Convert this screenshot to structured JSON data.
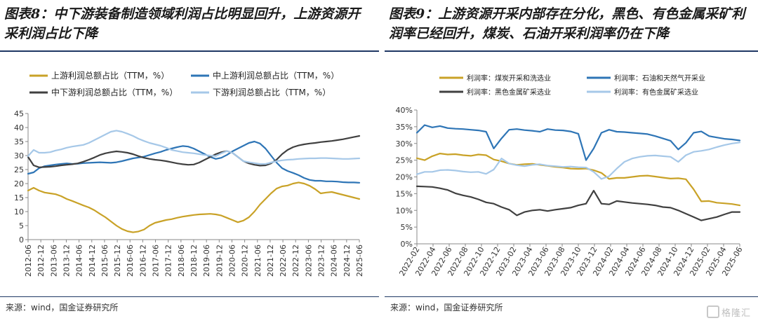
{
  "left": {
    "title": "图表8：中下游装备制造领域利润占比明显回升，上游资源开采利润占比下降",
    "source": "来源：wind，国金证券研究所"
  },
  "right": {
    "title": "图表9：上游资源开采内部存在分化，黑色、有色金属采矿利润率已经回升，煤炭、石油开采利润率仍在下降",
    "source": "来源：wind，国金证券研究所"
  },
  "watermark": "格隆汇",
  "chart_data": [
    {
      "type": "line",
      "title": "",
      "xlabel": "",
      "ylabel": "",
      "ylim": [
        0,
        45
      ],
      "yticks": [
        0,
        5,
        10,
        15,
        20,
        25,
        30,
        35,
        40,
        45
      ],
      "grid": false,
      "legend_position": "top",
      "x_tick_labels": [
        "2012-06",
        "2012-12",
        "2013-06",
        "2013-12",
        "2014-06",
        "2014-12",
        "2015-06",
        "2015-12",
        "2016-06",
        "2016-12",
        "2017-06",
        "2017-12",
        "2018-06",
        "2018-12",
        "2019-06",
        "2019-12",
        "2020-06",
        "2020-12",
        "2021-06",
        "2021-12",
        "2022-06",
        "2022-12",
        "2023-06",
        "2023-12",
        "2024-06",
        "2024-12",
        "2025-06"
      ],
      "series": [
        {
          "name": "上游利润总额占比（TTM，%）",
          "color": "#c9a227",
          "values": [
            17.5,
            18.5,
            17.5,
            16.8,
            16.5,
            16.2,
            15.5,
            14.5,
            13.8,
            13.0,
            12.2,
            11.5,
            10.5,
            9.2,
            8.0,
            6.5,
            5.0,
            3.8,
            3.0,
            2.6,
            2.9,
            3.6,
            5.0,
            6.0,
            6.5,
            7.0,
            7.3,
            7.8,
            8.2,
            8.5,
            8.8,
            9.0,
            9.1,
            9.2,
            9.0,
            8.6,
            7.8,
            7.0,
            6.2,
            6.8,
            8.0,
            10.0,
            12.5,
            14.5,
            16.5,
            18.2,
            19.0,
            19.3,
            20.0,
            20.4,
            20.0,
            19.2,
            18.0,
            16.5,
            16.8,
            17.0,
            16.5,
            16.0,
            15.5,
            15.0,
            14.5
          ]
        },
        {
          "name": "中上游利润总额占比（TTM，%）",
          "color": "#2e75b6",
          "values": [
            23.5,
            24.0,
            25.5,
            26.2,
            26.5,
            26.8,
            27.0,
            27.2,
            27.0,
            27.1,
            27.3,
            27.4,
            27.5,
            27.6,
            27.5,
            27.4,
            27.6,
            28.0,
            28.5,
            29.0,
            29.3,
            29.6,
            30.2,
            30.8,
            31.3,
            32.0,
            32.5,
            33.0,
            33.4,
            33.2,
            32.5,
            31.5,
            30.5,
            29.5,
            28.8,
            29.2,
            30.2,
            31.5,
            32.5,
            33.5,
            34.5,
            35.0,
            34.3,
            32.5,
            30.0,
            27.5,
            25.5,
            24.5,
            23.8,
            23.0,
            22.0,
            21.3,
            21.0,
            21.0,
            20.8,
            20.8,
            20.7,
            20.5,
            20.4,
            20.4,
            20.3
          ]
        },
        {
          "name": "中下游利润总额占比（TTM，%）",
          "color": "#404040",
          "values": [
            29.5,
            26.5,
            25.8,
            25.9,
            26.0,
            26.2,
            26.5,
            26.7,
            26.9,
            27.2,
            27.8,
            28.5,
            29.3,
            30.2,
            30.8,
            31.2,
            31.5,
            31.3,
            31.0,
            30.5,
            29.8,
            29.2,
            28.8,
            28.5,
            28.3,
            28.0,
            27.6,
            27.2,
            26.9,
            26.7,
            26.8,
            27.5,
            28.5,
            29.5,
            30.5,
            31.2,
            31.6,
            31.0,
            29.5,
            28.0,
            27.2,
            26.7,
            26.4,
            26.5,
            27.2,
            28.5,
            30.5,
            32.0,
            33.0,
            33.6,
            34.0,
            34.3,
            34.5,
            34.8,
            35.0,
            35.2,
            35.5,
            35.8,
            36.2,
            36.6,
            37.0
          ]
        },
        {
          "name": "下游利润总额占比（TTM，%）",
          "color": "#a6c8e8",
          "values": [
            29.8,
            32.0,
            31.0,
            31.0,
            31.2,
            31.8,
            32.2,
            32.8,
            33.2,
            33.5,
            33.8,
            34.5,
            35.5,
            36.5,
            37.5,
            38.5,
            38.9,
            38.5,
            37.8,
            37.0,
            36.0,
            35.2,
            34.5,
            34.0,
            33.5,
            32.8,
            32.0,
            31.6,
            31.2,
            31.0,
            30.8,
            30.5,
            30.2,
            30.0,
            29.8,
            30.8,
            31.6,
            31.0,
            29.5,
            28.0,
            27.6,
            27.3,
            27.0,
            27.0,
            27.5,
            28.0,
            28.3,
            28.5,
            28.6,
            28.8,
            28.9,
            29.0,
            29.0,
            29.1,
            29.1,
            29.0,
            28.9,
            28.8,
            28.8,
            28.9,
            29.0
          ]
        }
      ]
    },
    {
      "type": "line",
      "title": "",
      "xlabel": "",
      "ylabel": "",
      "ylim": [
        0,
        40
      ],
      "yticks": [
        0,
        5,
        10,
        15,
        20,
        25,
        30,
        35,
        40
      ],
      "y_tick_format": "percent",
      "grid": false,
      "legend_position": "top",
      "x_tick_labels": [
        "2022-02",
        "2022-04",
        "2022-06",
        "2022-08",
        "2022-10",
        "2022-12",
        "2023-02",
        "2023-04",
        "2023-06",
        "2023-08",
        "2023-10",
        "2023-12",
        "2024-02",
        "2024-04",
        "2024-06",
        "2024-08",
        "2024-10",
        "2024-12",
        "2025-02",
        "2025-04",
        "2025-06"
      ],
      "series": [
        {
          "name": "利润率：煤炭开采和洗选业",
          "color": "#c9a227",
          "values": [
            25.6,
            25.0,
            26.2,
            27.0,
            26.7,
            26.8,
            26.5,
            26.3,
            26.7,
            26.5,
            25.2,
            24.7,
            24.0,
            23.6,
            23.8,
            23.9,
            23.6,
            23.3,
            23.0,
            22.8,
            22.5,
            22.4,
            22.5,
            22.0,
            21.2,
            19.4,
            19.7,
            19.7,
            20.0,
            20.3,
            20.4,
            20.1,
            19.8,
            19.5,
            19.6,
            19.3,
            16.3,
            12.7,
            12.8,
            12.3,
            12.1,
            11.9,
            11.5
          ]
        },
        {
          "name": "利润率：石油和天然气开采业",
          "color": "#2e75b6",
          "values": [
            33.2,
            35.5,
            34.8,
            35.2,
            34.6,
            34.4,
            34.3,
            34.1,
            33.9,
            33.5,
            28.5,
            31.5,
            34.1,
            34.3,
            34.0,
            33.8,
            33.5,
            34.3,
            34.0,
            33.9,
            33.6,
            32.9,
            25.0,
            28.5,
            33.2,
            34.1,
            33.5,
            33.4,
            33.2,
            33.0,
            32.8,
            32.2,
            31.5,
            30.8,
            28.2,
            30.2,
            33.2,
            33.6,
            32.2,
            31.8,
            31.4,
            31.2,
            30.9
          ]
        },
        {
          "name": "利润率：黑色金属矿采选业",
          "color": "#404040",
          "values": [
            17.2,
            17.1,
            17.0,
            16.6,
            16.1,
            15.1,
            14.5,
            14.0,
            13.3,
            12.4,
            12.0,
            11.0,
            10.2,
            8.5,
            9.5,
            10.0,
            10.2,
            9.8,
            10.2,
            10.5,
            10.8,
            11.5,
            12.0,
            15.9,
            12.0,
            11.8,
            12.8,
            12.5,
            12.2,
            12.0,
            11.8,
            11.5,
            11.0,
            10.8,
            10.0,
            9.0,
            8.0,
            7.0,
            7.5,
            8.0,
            8.8,
            9.5,
            9.5
          ]
        },
        {
          "name": "利润率：有色金属矿采选业",
          "color": "#a6c8e8",
          "values": [
            20.8,
            21.5,
            21.5,
            22.0,
            22.1,
            21.9,
            21.6,
            21.4,
            21.5,
            20.9,
            22.2,
            25.5,
            24.0,
            23.5,
            23.2,
            23.6,
            23.8,
            23.4,
            23.2,
            23.0,
            23.1,
            22.9,
            22.8,
            21.5,
            19.4,
            20.2,
            22.5,
            24.5,
            25.5,
            26.0,
            26.3,
            26.4,
            26.2,
            26.0,
            24.5,
            26.5,
            27.5,
            27.8,
            28.2,
            28.9,
            29.5,
            30.0,
            30.3
          ]
        }
      ]
    }
  ]
}
